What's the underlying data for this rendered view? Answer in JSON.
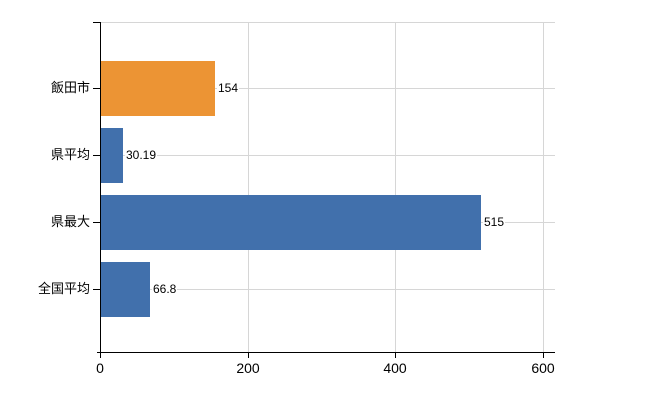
{
  "chart_data": {
    "type": "bar",
    "orientation": "horizontal",
    "title": "",
    "xlabel": "",
    "ylabel": "",
    "categories": [
      "飯田市",
      "県平均",
      "県最大",
      "全国平均"
    ],
    "values": [
      154,
      30.19,
      515,
      66.8
    ],
    "value_labels": [
      "154",
      "30.19",
      "515",
      "66.8"
    ],
    "bar_colors": [
      "#ec9434",
      "#4170ac",
      "#4170ac",
      "#4170ac"
    ],
    "xlim": [
      0,
      600
    ],
    "x_ticks": [
      0,
      200,
      400,
      600
    ],
    "x_tick_labels": [
      "0",
      "200",
      "400",
      "600"
    ],
    "grid": true,
    "gridline_positions": "category-centers and x ticks 200/400/600 and plot top edge",
    "legend": false
  },
  "colors": {
    "highlight_bar": "#ec9434",
    "default_bar": "#4170ac",
    "gridline": "#d6d6d6",
    "axis": "#000000",
    "text": "#000000",
    "background": "#ffffff"
  }
}
